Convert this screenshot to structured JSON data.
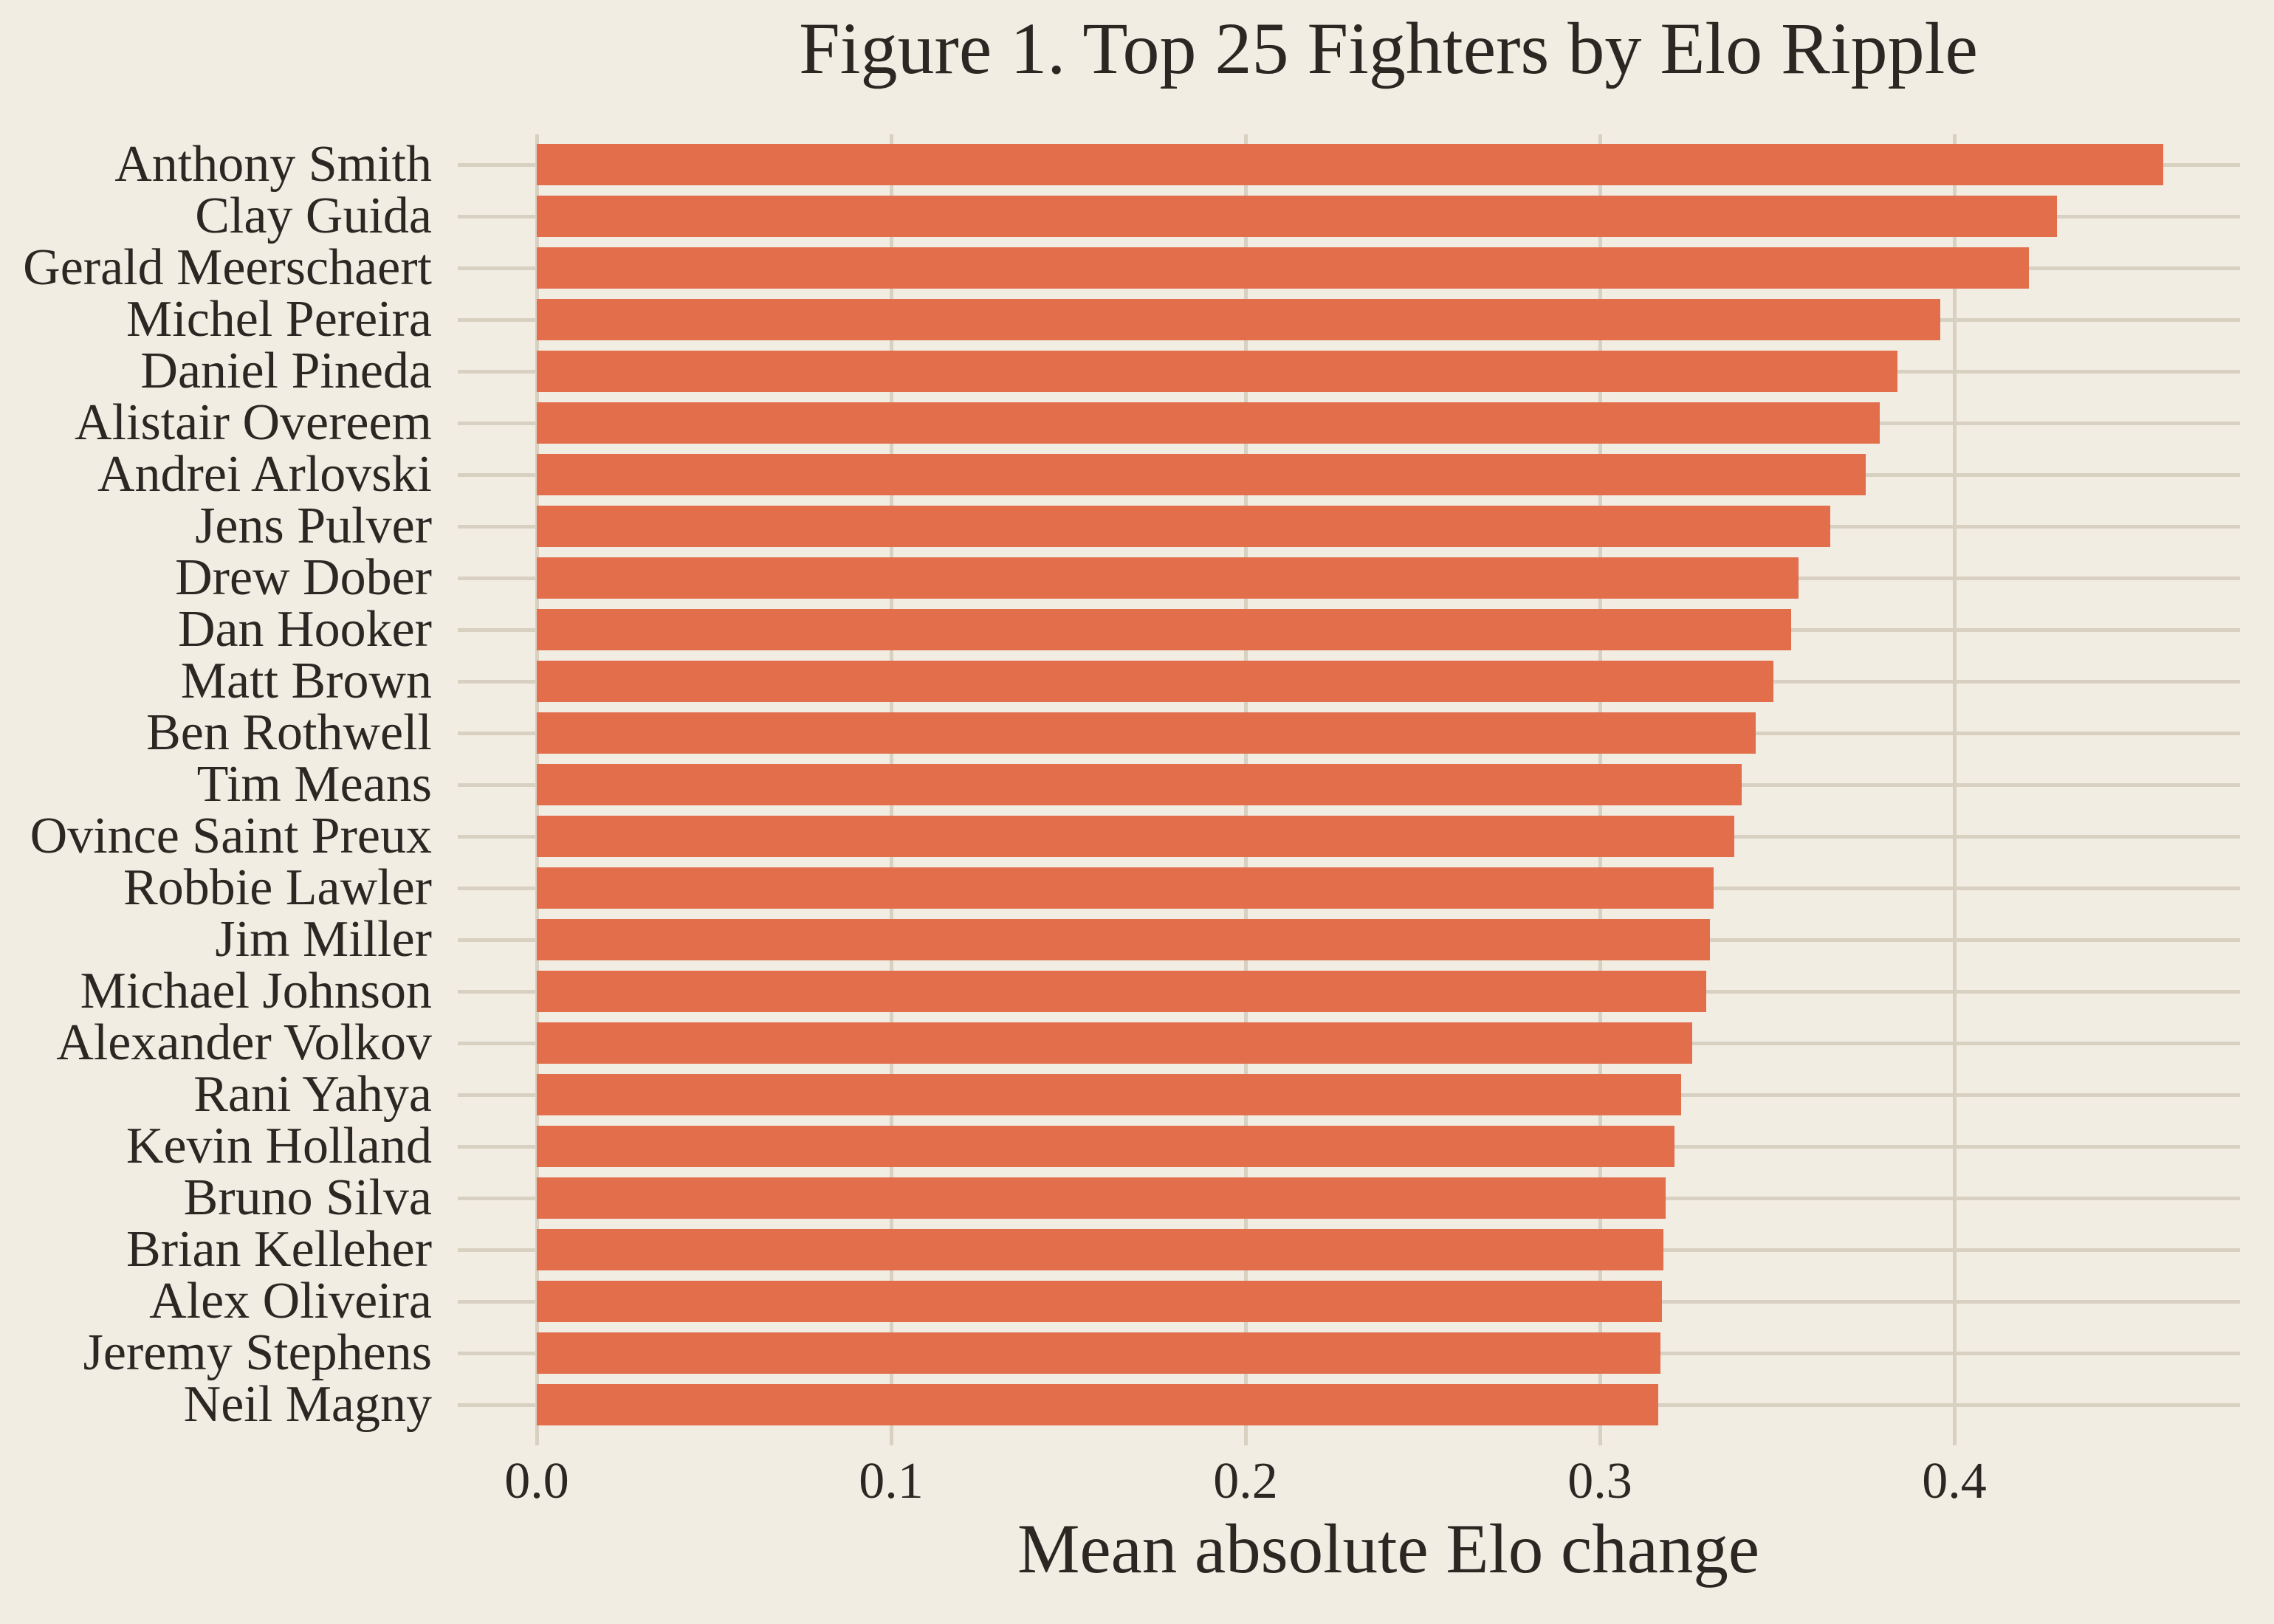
{
  "figure": {
    "background_color": "#f2ede3",
    "text_color": "#2b2722"
  },
  "chart_data": {
    "type": "bar",
    "orientation": "horizontal",
    "title": "Figure 1. Top 25 Fighters by Elo Ripple",
    "xlabel": "Mean absolute Elo change",
    "ylabel": "",
    "categories": [
      "Anthony Smith",
      "Clay Guida",
      "Gerald Meerschaert",
      "Michel Pereira",
      "Daniel Pineda",
      "Alistair Overeem",
      "Andrei Arlovski",
      "Jens Pulver",
      "Drew Dober",
      "Dan Hooker",
      "Matt Brown",
      "Ben Rothwell",
      "Tim Means",
      "Ovince Saint Preux",
      "Robbie Lawler",
      "Jim Miller",
      "Michael Johnson",
      "Alexander Volkov",
      "Rani Yahya",
      "Kevin Holland",
      "Bruno Silva",
      "Brian Kelleher",
      "Alex Oliveira",
      "Jeremy Stephens",
      "Neil Magny"
    ],
    "values": [
      0.459,
      0.429,
      0.421,
      0.396,
      0.384,
      0.379,
      0.375,
      0.365,
      0.356,
      0.354,
      0.349,
      0.344,
      0.34,
      0.338,
      0.332,
      0.331,
      0.33,
      0.326,
      0.323,
      0.321,
      0.3185,
      0.318,
      0.3175,
      0.317,
      0.3165
    ],
    "xlim": [
      0,
      0.4806
    ],
    "xticks": [
      0.0,
      0.1,
      0.2,
      0.3,
      0.4
    ],
    "xtick_labels": [
      "0.0",
      "0.1",
      "0.2",
      "0.3",
      "0.4"
    ],
    "grid": true,
    "legend": false,
    "bar_color": "#e26e4c",
    "grid_color": "#d8d0c0",
    "background_color": "#f2ede3"
  }
}
